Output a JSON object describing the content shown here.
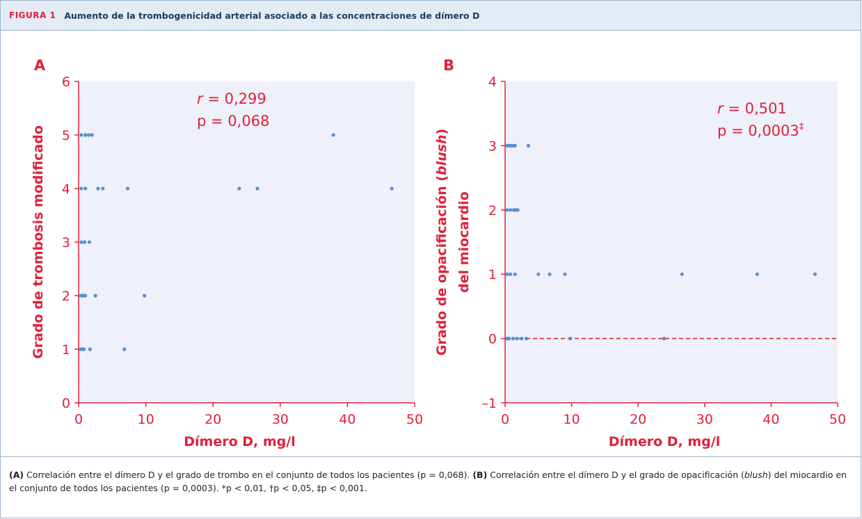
{
  "figure": {
    "label": "FIGURA 1",
    "title": "Aumento de la trombogenicidad arterial asociado a las concentraciones de dímero D"
  },
  "caption": {
    "a_tag": "(A)",
    "a_text": " Correlación entre el dímero D y el grado de trombo en el conjunto de todos los pacientes (p = 0,068). ",
    "b_tag": "(B)",
    "b_text_1": " Correlación entre el dímero D y el grado de opacificación (",
    "b_italic": "blush",
    "b_text_2": ") del miocardio en el conjunto de todos los pacientes (p = 0,0003). *p < 0,01, †p < 0,05, ‡p < 0,001."
  },
  "colors": {
    "accent": "#e0203a",
    "point": "#5b8fd0",
    "plot_bg": "#eef1f9",
    "header_bg": "#e3ebf4"
  },
  "chart_data": [
    {
      "type": "scatter",
      "panel": "A",
      "xlabel": "Dímero D, mg/l",
      "ylabel": "Grado de trombosis modificado",
      "xlim": [
        0,
        50
      ],
      "ylim": [
        0,
        6
      ],
      "xticks": [
        0,
        10,
        20,
        30,
        40,
        50
      ],
      "yticks": [
        0,
        1,
        2,
        3,
        4,
        5,
        6
      ],
      "stat_r_label": "r",
      "stat_r_value": " = 0,299",
      "stat_p": "p = 0,068",
      "points": [
        [
          0.3,
          1
        ],
        [
          0.5,
          1
        ],
        [
          0.6,
          1
        ],
        [
          0.8,
          1
        ],
        [
          1.7,
          1
        ],
        [
          6.8,
          1
        ],
        [
          0.3,
          2
        ],
        [
          0.5,
          2
        ],
        [
          0.6,
          2
        ],
        [
          0.8,
          2
        ],
        [
          1.0,
          2
        ],
        [
          2.5,
          2
        ],
        [
          9.8,
          2
        ],
        [
          0.4,
          3
        ],
        [
          0.9,
          3
        ],
        [
          1.6,
          3
        ],
        [
          0.4,
          4
        ],
        [
          1.0,
          4
        ],
        [
          2.9,
          4
        ],
        [
          3.6,
          4
        ],
        [
          7.3,
          4
        ],
        [
          23.9,
          4
        ],
        [
          26.6,
          4
        ],
        [
          46.6,
          4
        ],
        [
          0.4,
          5
        ],
        [
          1.0,
          5
        ],
        [
          1.5,
          5
        ],
        [
          2.0,
          5
        ],
        [
          37.9,
          5
        ]
      ]
    },
    {
      "type": "scatter",
      "panel": "B",
      "xlabel": "Dímero D, mg/l",
      "ylabel_line1": "Grado de opacificación (",
      "ylabel_italic": "blush",
      "ylabel_line1_end": ")",
      "ylabel_line2": "del miocardio",
      "xlim": [
        0,
        50
      ],
      "ylim": [
        -1,
        4
      ],
      "xticks": [
        0,
        10,
        20,
        30,
        40,
        50
      ],
      "yticks": [
        -1,
        0,
        1,
        2,
        3,
        4
      ],
      "ytick_labels": [
        "–1",
        "0",
        "1",
        "2",
        "3",
        "4"
      ],
      "reference_line_y": 0,
      "stat_r_label": "r",
      "stat_r_value": " = 0,501",
      "stat_p": "p = 0,0003",
      "stat_p_sup": "‡",
      "points": [
        [
          0.3,
          0
        ],
        [
          0.6,
          0
        ],
        [
          1.2,
          0
        ],
        [
          1.8,
          0
        ],
        [
          2.5,
          0
        ],
        [
          3.2,
          0
        ],
        [
          9.8,
          0
        ],
        [
          23.9,
          0
        ],
        [
          0.3,
          1
        ],
        [
          0.8,
          1
        ],
        [
          1.5,
          1
        ],
        [
          5.0,
          1
        ],
        [
          6.7,
          1
        ],
        [
          9.0,
          1
        ],
        [
          26.6,
          1
        ],
        [
          37.9,
          1
        ],
        [
          46.6,
          1
        ],
        [
          0.3,
          2
        ],
        [
          0.8,
          2
        ],
        [
          1.3,
          2
        ],
        [
          1.6,
          2
        ],
        [
          1.9,
          2
        ],
        [
          0.3,
          3
        ],
        [
          0.6,
          3
        ],
        [
          0.9,
          3
        ],
        [
          1.2,
          3
        ],
        [
          1.5,
          3
        ],
        [
          3.5,
          3
        ]
      ]
    }
  ]
}
